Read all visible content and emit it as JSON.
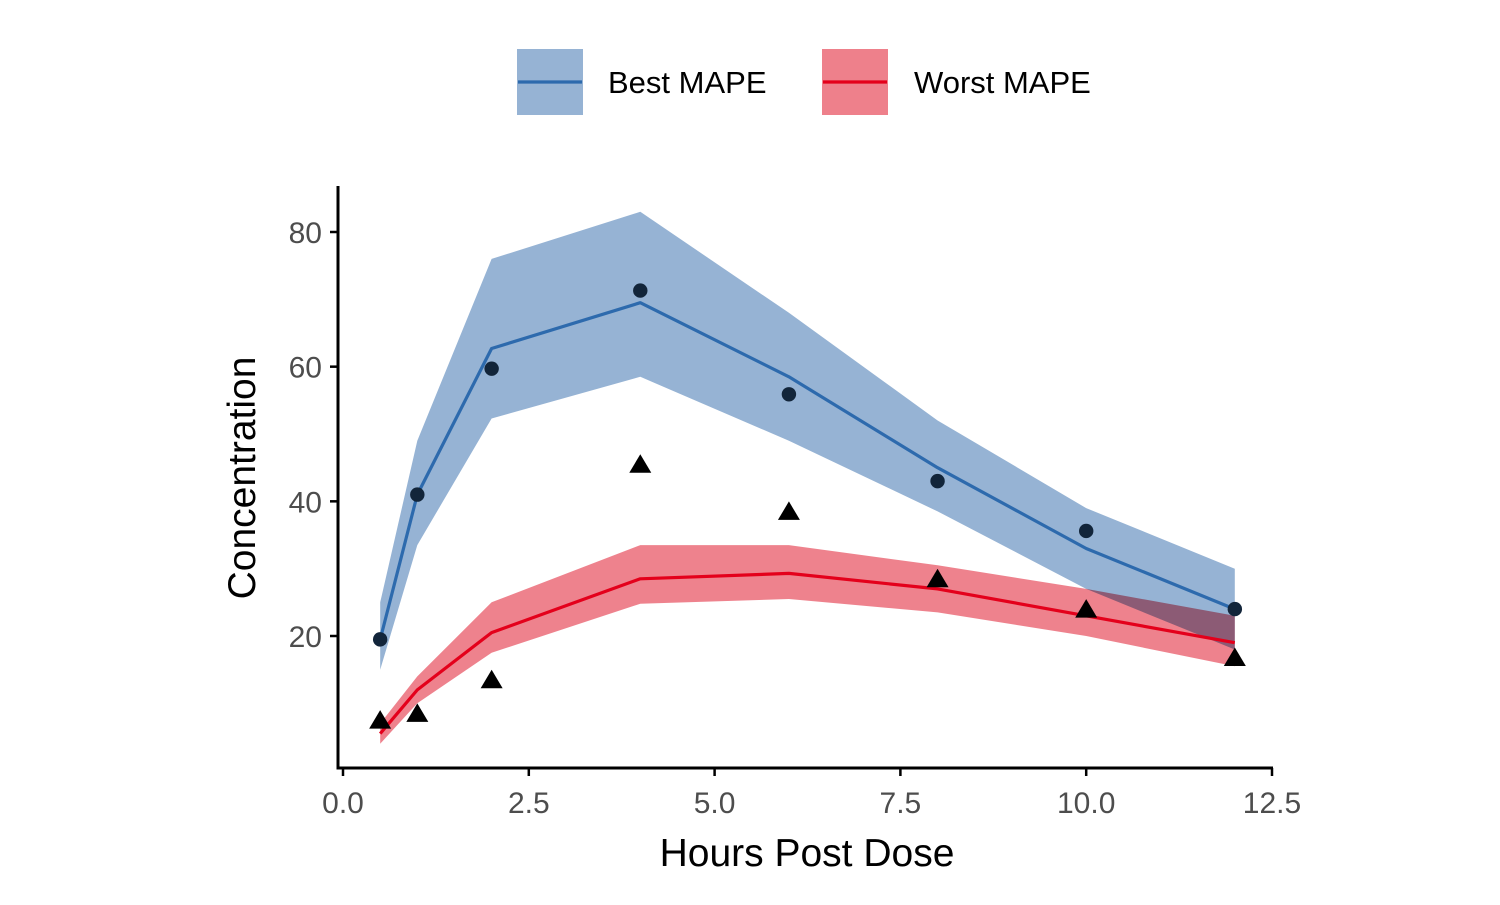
{
  "colors": {
    "best_line": "#2D6AAD",
    "best_band": "#96B3D4",
    "worst_line": "#E4001B",
    "worst_band": "#EE808B",
    "points": "#000000",
    "points_best": "#12253A",
    "axis": "#000000"
  },
  "chart_data": {
    "type": "line",
    "xlabel": "Hours Post Dose",
    "ylabel": "Concentration",
    "xlim": [
      0,
      12.5
    ],
    "ylim": [
      2,
      87
    ],
    "x_ticks": [
      0.0,
      2.5,
      5.0,
      7.5,
      10.0,
      12.5
    ],
    "x_tick_labels": [
      "0.0",
      "2.5",
      "5.0",
      "7.5",
      "10.0",
      "12.5"
    ],
    "y_ticks": [
      20,
      40,
      60,
      80
    ],
    "y_tick_labels": [
      "20",
      "40",
      "60",
      "80"
    ],
    "grid": false,
    "legend": {
      "position": "top",
      "entries": [
        "Best MAPE",
        "Worst MAPE"
      ]
    },
    "x": [
      0.5,
      1,
      2,
      4,
      6,
      8,
      10,
      12
    ],
    "series": [
      {
        "name": "Best MAPE",
        "color_key": "best_line",
        "band_color_key": "best_band",
        "values": [
          19.5,
          41,
          62.7,
          69.5,
          58.5,
          45,
          33,
          24
        ],
        "lower": [
          15,
          33.5,
          52.3,
          58.5,
          49,
          38.5,
          27,
          18
        ],
        "upper": [
          25,
          49,
          76,
          83,
          68,
          52,
          39,
          30
        ],
        "observed": [
          19.5,
          41,
          59.7,
          71.3,
          55.9,
          43,
          35.6,
          24
        ],
        "marker": "circle"
      },
      {
        "name": "Worst MAPE",
        "color_key": "worst_line",
        "band_color_key": "worst_band",
        "values": [
          5.5,
          12,
          20.5,
          28.5,
          29.3,
          27,
          23,
          19
        ],
        "lower": [
          4,
          10,
          17.5,
          24.8,
          25.5,
          23.5,
          20,
          15.5
        ],
        "upper": [
          7,
          14,
          25,
          33.5,
          33.5,
          30.5,
          27,
          23
        ],
        "observed": [
          7.5,
          8.5,
          13.5,
          45.5,
          38.5,
          28.5,
          24,
          16.8
        ],
        "marker": "triangle"
      }
    ]
  }
}
